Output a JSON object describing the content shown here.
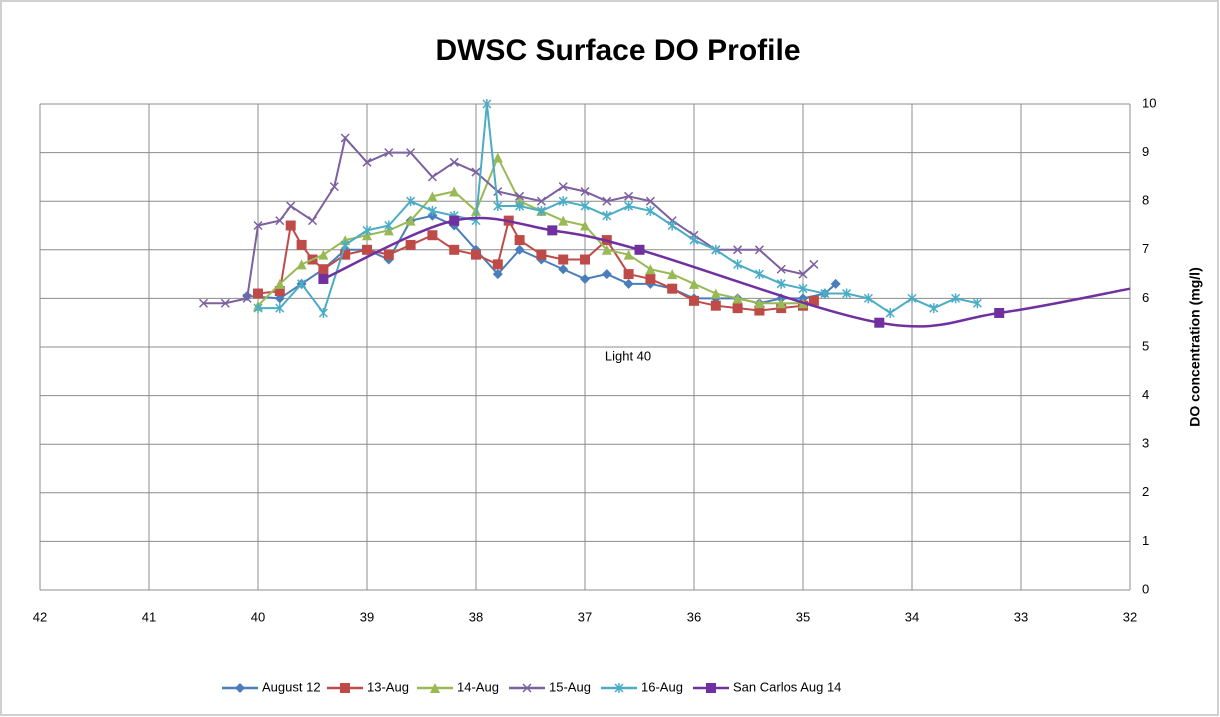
{
  "chart_data": {
    "type": "line",
    "title": "DWSC Surface DO Profile",
    "y_label": "DO concentration (mg/l)",
    "annotation": "Light 40",
    "xlim": [
      42,
      32
    ],
    "xticks": [
      42,
      41,
      40,
      39,
      38,
      37,
      36,
      35,
      34,
      33,
      32
    ],
    "ylim": [
      0,
      10
    ],
    "yticks": [
      0,
      1,
      2,
      3,
      4,
      5,
      6,
      7,
      8,
      9,
      10
    ],
    "grid": true,
    "legend": "bottom",
    "series": [
      {
        "name": "August 12",
        "color": "#4a7ebb",
        "marker": "diamond",
        "x": [
          40.1,
          39.8,
          39.6,
          39.4,
          39.2,
          39.0,
          38.8,
          38.6,
          38.4,
          38.2,
          38.0,
          37.8,
          37.6,
          37.4,
          37.2,
          37.0,
          36.8,
          36.6,
          36.4,
          36.2,
          36.0,
          35.8,
          35.6,
          35.4,
          35.2,
          35.0,
          34.8,
          34.7
        ],
        "values": [
          6.05,
          6.0,
          6.3,
          6.6,
          7.0,
          7.0,
          6.8,
          7.6,
          7.7,
          7.5,
          7.0,
          6.5,
          7.0,
          6.8,
          6.6,
          6.4,
          6.5,
          6.3,
          6.3,
          6.2,
          6.0,
          6.0,
          6.0,
          5.9,
          6.0,
          6.0,
          6.1,
          6.3
        ]
      },
      {
        "name": "13-Aug",
        "color": "#be4b48",
        "marker": "square",
        "x": [
          40.0,
          39.8,
          39.7,
          39.6,
          39.5,
          39.4,
          39.2,
          39.0,
          38.8,
          38.6,
          38.4,
          38.2,
          38.0,
          37.8,
          37.7,
          37.6,
          37.4,
          37.2,
          37.0,
          36.8,
          36.6,
          36.4,
          36.2,
          36.0,
          35.8,
          35.6,
          35.4,
          35.2,
          35.0,
          34.9
        ],
        "values": [
          6.1,
          6.15,
          7.5,
          7.1,
          6.8,
          6.6,
          6.9,
          7.0,
          6.9,
          7.1,
          7.3,
          7.0,
          6.9,
          6.7,
          7.6,
          7.2,
          6.9,
          6.8,
          6.8,
          7.2,
          6.5,
          6.4,
          6.2,
          5.95,
          5.85,
          5.8,
          5.75,
          5.8,
          5.85,
          5.95
        ]
      },
      {
        "name": "14-Aug",
        "color": "#98b954",
        "marker": "triangle",
        "x": [
          40.0,
          39.8,
          39.6,
          39.4,
          39.2,
          39.0,
          38.8,
          38.6,
          38.4,
          38.2,
          38.0,
          37.8,
          37.6,
          37.4,
          37.2,
          37.0,
          36.8,
          36.6,
          36.4,
          36.2,
          36.0,
          35.8,
          35.6,
          35.4,
          35.2,
          35.0
        ],
        "values": [
          5.85,
          6.3,
          6.7,
          6.9,
          7.2,
          7.3,
          7.4,
          7.6,
          8.1,
          8.2,
          7.8,
          8.9,
          8.0,
          7.8,
          7.6,
          7.5,
          7.0,
          6.9,
          6.6,
          6.5,
          6.3,
          6.1,
          6.0,
          5.9,
          5.9,
          5.9
        ]
      },
      {
        "name": "15-Aug",
        "color": "#7d60a0",
        "marker": "x",
        "x": [
          40.5,
          40.3,
          40.1,
          40.0,
          39.8,
          39.7,
          39.5,
          39.3,
          39.2,
          39.0,
          38.8,
          38.6,
          38.4,
          38.2,
          38.0,
          37.8,
          37.6,
          37.4,
          37.2,
          37.0,
          36.8,
          36.6,
          36.4,
          36.2,
          36.0,
          35.8,
          35.6,
          35.4,
          35.2,
          35.0,
          34.9
        ],
        "values": [
          5.9,
          5.9,
          6.0,
          7.5,
          7.6,
          7.9,
          7.6,
          8.3,
          9.3,
          8.8,
          9.0,
          9.0,
          8.5,
          8.8,
          8.6,
          8.2,
          8.1,
          8.0,
          8.3,
          8.2,
          8.0,
          8.1,
          8.0,
          7.6,
          7.3,
          7.0,
          7.0,
          7.0,
          6.6,
          6.5,
          6.7
        ]
      },
      {
        "name": "16-Aug",
        "color": "#4bacc6",
        "marker": "star",
        "x": [
          40.0,
          39.8,
          39.6,
          39.4,
          39.2,
          39.0,
          38.8,
          38.6,
          38.4,
          38.2,
          38.0,
          37.9,
          37.8,
          37.6,
          37.4,
          37.2,
          37.0,
          36.8,
          36.6,
          36.4,
          36.2,
          36.0,
          35.8,
          35.6,
          35.4,
          35.2,
          35.0,
          34.8,
          34.6,
          34.4,
          34.2,
          34.0,
          33.8,
          33.6,
          33.4
        ],
        "values": [
          5.8,
          5.8,
          6.3,
          5.7,
          7.1,
          7.4,
          7.5,
          8.0,
          7.8,
          7.7,
          7.6,
          10.0,
          7.9,
          7.9,
          7.8,
          8.0,
          7.9,
          7.7,
          7.9,
          7.8,
          7.5,
          7.2,
          7.0,
          6.7,
          6.5,
          6.3,
          6.2,
          6.1,
          6.1,
          6.0,
          5.7,
          6.0,
          5.8,
          6.0,
          5.9
        ]
      },
      {
        "name": "San Carlos  Aug 14",
        "color": "#7030a0",
        "marker": "square",
        "smooth": true,
        "x": [
          39.4,
          38.2,
          37.3,
          36.5,
          34.3,
          33.2,
          32.0
        ],
        "values": [
          6.4,
          7.6,
          7.4,
          7.0,
          5.5,
          5.7,
          6.2
        ]
      }
    ]
  }
}
